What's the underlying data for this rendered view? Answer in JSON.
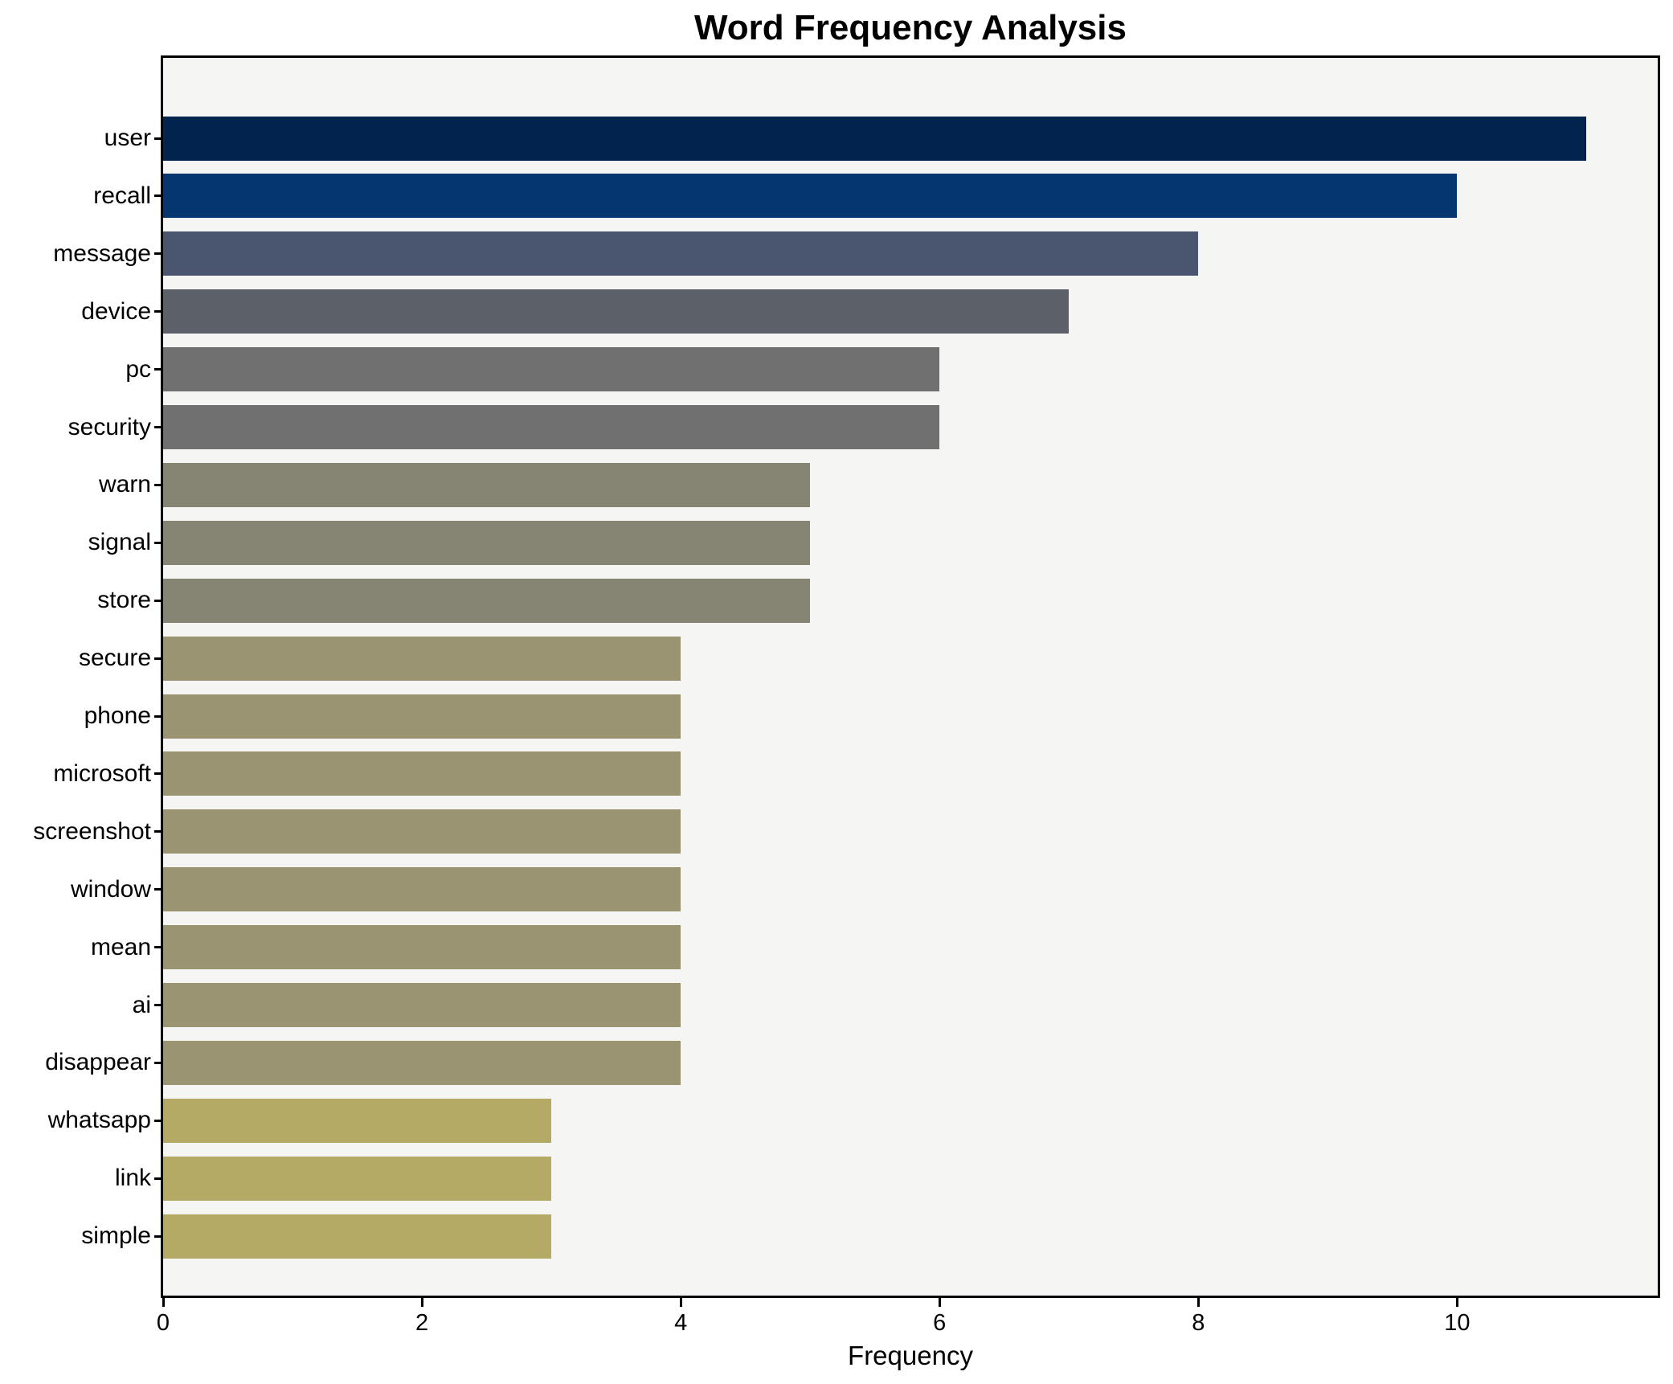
{
  "chart_data": {
    "type": "bar",
    "orientation": "horizontal",
    "title": "Word Frequency Analysis",
    "xlabel": "Frequency",
    "ylabel": "",
    "categories": [
      "user",
      "recall",
      "message",
      "device",
      "pc",
      "security",
      "warn",
      "signal",
      "store",
      "secure",
      "phone",
      "microsoft",
      "screenshot",
      "window",
      "mean",
      "ai",
      "disappear",
      "whatsapp",
      "link",
      "simple"
    ],
    "values": [
      11,
      10,
      8,
      7,
      6,
      6,
      5,
      5,
      5,
      4,
      4,
      4,
      4,
      4,
      4,
      4,
      4,
      3,
      3,
      3
    ],
    "bar_colors": [
      "#01234e",
      "#063670",
      "#4a5570",
      "#5c6069",
      "#707071",
      "#707071",
      "#868473",
      "#868473",
      "#868473",
      "#9b9472",
      "#9b9472",
      "#9b9472",
      "#9b9472",
      "#9b9472",
      "#9b9472",
      "#9b9472",
      "#9b9472",
      "#b4aa66",
      "#b4aa66",
      "#b4aa66"
    ],
    "x_ticks": [
      0,
      2,
      4,
      6,
      8,
      10
    ],
    "x_tick_labels": [
      "0",
      "2",
      "4",
      "6",
      "8",
      "10"
    ],
    "xlim": [
      0,
      11.55
    ],
    "grid": false,
    "legend": null,
    "plot_bg": "#f5f5f4",
    "figure_bg": "#ffffff",
    "spine_color": "#000000",
    "text_color": "#000000"
  }
}
